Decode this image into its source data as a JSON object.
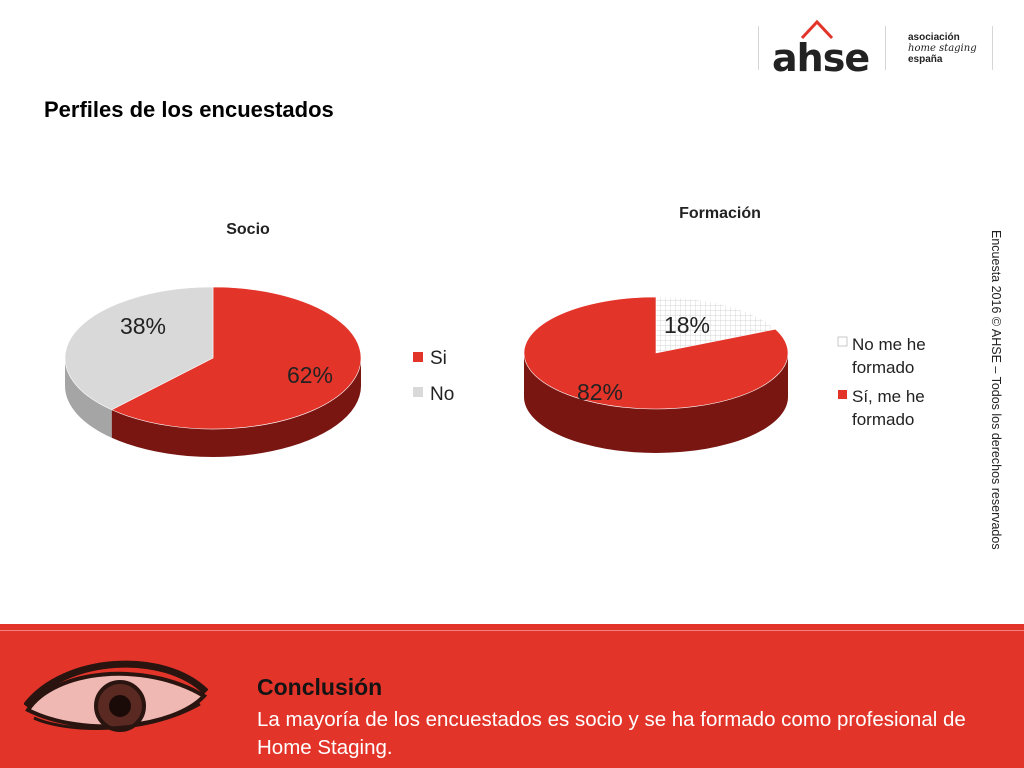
{
  "logo": {
    "mark": "ahse",
    "line1": "asociación",
    "line2": "home staging",
    "line3": "españa"
  },
  "page": {
    "title": "Perfiles de los encuestados"
  },
  "side_note": "Encuesta 2016 © AHSE – Todos los derechos reservados",
  "colors": {
    "red": "#e3342a",
    "red_dark": "#7a1612",
    "grey": "#d9d9d9",
    "grey_dark": "#a5a5a5"
  },
  "chart_data": [
    {
      "type": "pie",
      "title": "Socio",
      "categories": [
        "Si",
        "No"
      ],
      "values": [
        62,
        38
      ],
      "data_labels": [
        "62%",
        "38%"
      ],
      "legend": "right",
      "style": "3d"
    },
    {
      "type": "pie",
      "title": "Formación",
      "categories": [
        "No me he formado",
        "Sí, me he formado"
      ],
      "values": [
        18,
        82
      ],
      "data_labels": [
        "18%",
        "82%"
      ],
      "legend": "right",
      "style": "3d"
    }
  ],
  "legend2": {
    "item1_line1": "No me he",
    "item1_line2": "formado",
    "item2_line1": "Sí, me he",
    "item2_line2": "formado"
  },
  "conclusion": {
    "heading": "Conclusión",
    "text": "La mayoría de los encuestados es socio y se ha formado como profesional de Home Staging."
  }
}
